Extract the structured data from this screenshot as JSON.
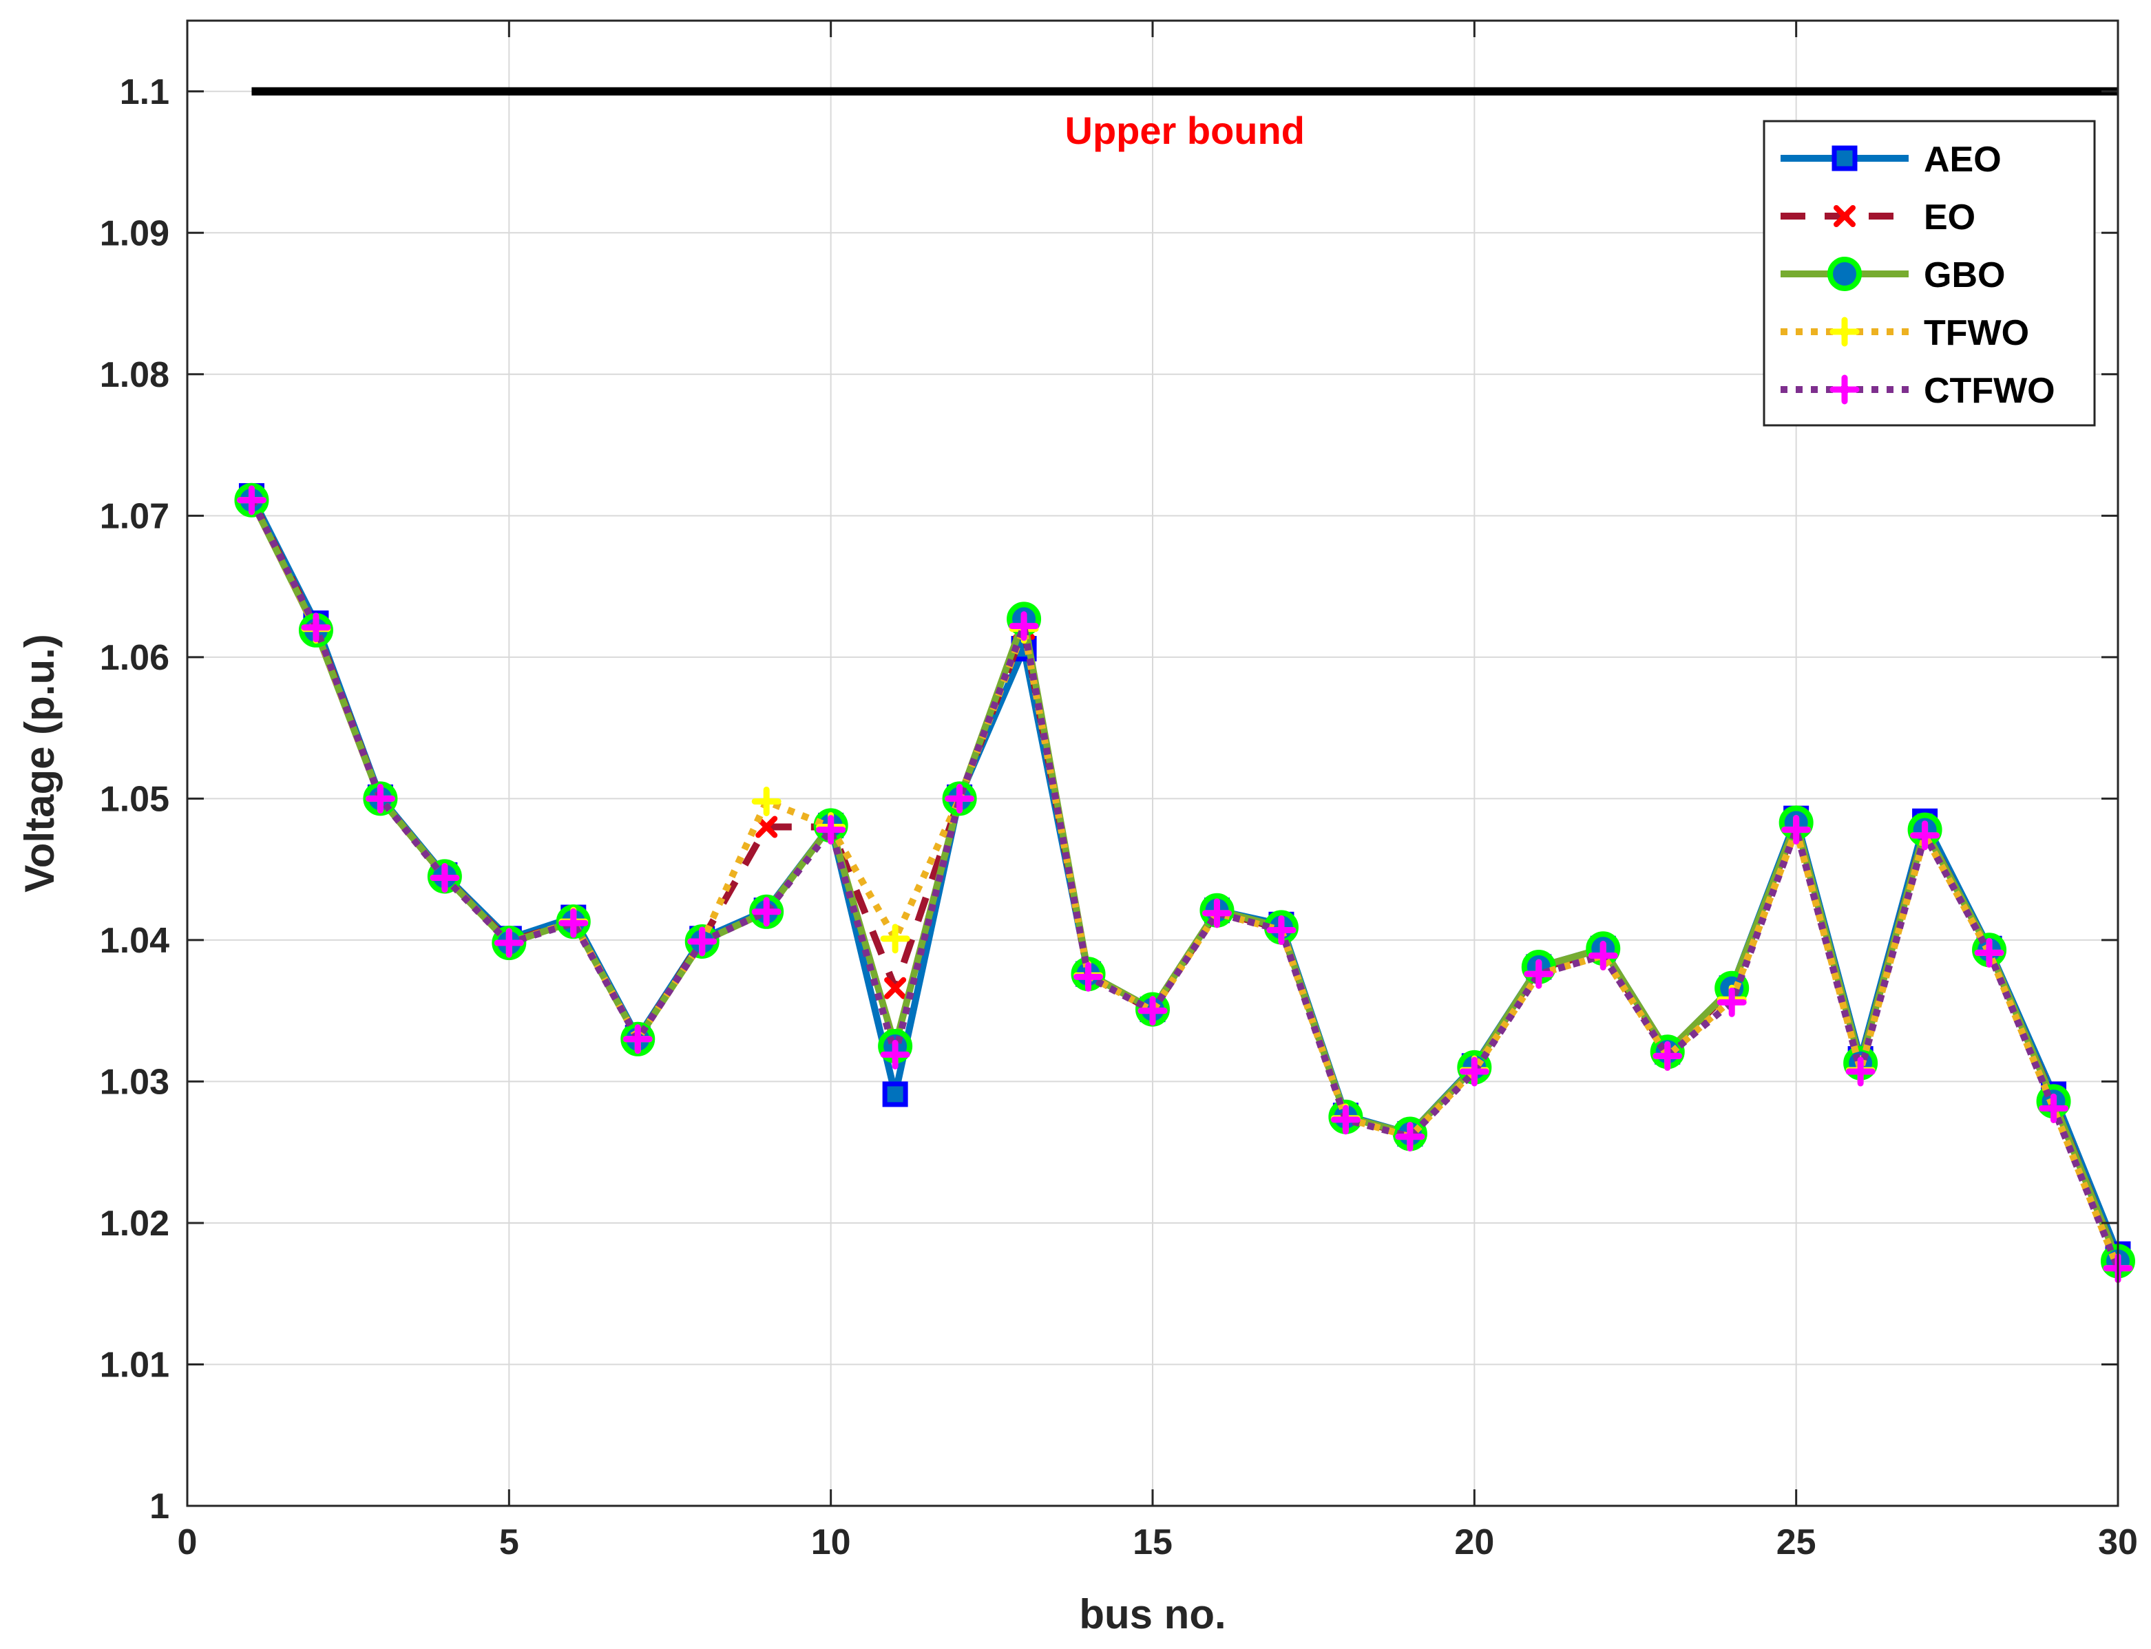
{
  "chart_data": {
    "type": "line",
    "xlabel": "bus no.",
    "ylabel": "Voltage (p.u.)",
    "xlim": [
      0,
      30
    ],
    "ylim": [
      1.0,
      1.105
    ],
    "xticks": [
      0,
      5,
      10,
      15,
      20,
      25,
      30
    ],
    "xtick_labels": [
      "0",
      "5",
      "10",
      "15",
      "20",
      "25",
      "30"
    ],
    "yticks": [
      1.0,
      1.01,
      1.02,
      1.03,
      1.04,
      1.05,
      1.06,
      1.07,
      1.08,
      1.09,
      1.1
    ],
    "ytick_labels": [
      "1",
      "1.01",
      "1.02",
      "1.03",
      "1.04",
      "1.05",
      "1.06",
      "1.07",
      "1.08",
      "1.09",
      "1.1"
    ],
    "grid": true,
    "legend_position": "top-right",
    "x": [
      1,
      2,
      3,
      4,
      5,
      6,
      7,
      8,
      9,
      10,
      11,
      12,
      13,
      14,
      15,
      16,
      17,
      18,
      19,
      20,
      21,
      22,
      23,
      24,
      25,
      26,
      27,
      28,
      29,
      30
    ],
    "series": [
      {
        "name": "AEO",
        "line_color": "#0072BD",
        "line_style": "solid",
        "marker": "square",
        "marker_color": "#0000FF",
        "values": [
          1.0714,
          1.0624,
          1.0501,
          1.0446,
          1.0401,
          1.0416,
          1.0331,
          1.0401,
          1.0421,
          1.0481,
          1.0291,
          1.0501,
          1.0606,
          1.0376,
          1.0351,
          1.0421,
          1.0411,
          1.0276,
          1.0263,
          1.0311,
          1.0381,
          1.0394,
          1.0321,
          1.0366,
          1.0486,
          1.0316,
          1.0484,
          1.0394,
          1.0291,
          1.0178
        ]
      },
      {
        "name": "EO",
        "line_color": "#A2142F",
        "line_style": "dashed",
        "marker": "x",
        "marker_color": "#FF0000",
        "values": [
          1.0712,
          1.0621,
          1.05,
          1.0445,
          1.0399,
          1.0413,
          1.033,
          1.04,
          1.048,
          1.048,
          1.0366,
          1.05,
          1.062,
          1.0375,
          1.035,
          1.042,
          1.0408,
          1.0275,
          1.0262,
          1.031,
          1.038,
          1.0392,
          1.032,
          1.0365,
          1.0482,
          1.0313,
          1.0479,
          1.0392,
          1.0287,
          1.0173
        ]
      },
      {
        "name": "GBO",
        "line_color": "#77AC30",
        "line_style": "solid",
        "marker": "circle",
        "marker_color": "#00FF00",
        "values": [
          1.0711,
          1.0619,
          1.05,
          1.0445,
          1.0398,
          1.0413,
          1.033,
          1.0399,
          1.042,
          1.0481,
          1.0325,
          1.05,
          1.0627,
          1.0376,
          1.0351,
          1.0421,
          1.0409,
          1.0275,
          1.0263,
          1.031,
          1.0381,
          1.0394,
          1.0321,
          1.0366,
          1.0483,
          1.0313,
          1.0478,
          1.0393,
          1.0286,
          1.0173
        ]
      },
      {
        "name": "TFWO",
        "line_color": "#EDB120",
        "line_style": "dotted",
        "marker": "plus",
        "marker_color": "#FFFF00",
        "values": [
          1.0711,
          1.062,
          1.05,
          1.0444,
          1.0398,
          1.0413,
          1.033,
          1.0399,
          1.0498,
          1.048,
          1.0401,
          1.05,
          1.062,
          1.0375,
          1.035,
          1.0419,
          1.0407,
          1.0274,
          1.0261,
          1.0308,
          1.0376,
          1.0389,
          1.0318,
          1.0358,
          1.0478,
          1.0308,
          1.0474,
          1.0391,
          1.0281,
          1.0168
        ]
      },
      {
        "name": "CTFWO",
        "line_color": "#7E2F8E",
        "line_style": "dotted",
        "marker": "plus",
        "marker_color": "#FF00FF",
        "values": [
          1.0711,
          1.0621,
          1.05,
          1.0444,
          1.0398,
          1.0412,
          1.033,
          1.0399,
          1.042,
          1.0478,
          1.0319,
          1.05,
          1.0622,
          1.0374,
          1.035,
          1.0419,
          1.0407,
          1.0273,
          1.0261,
          1.0307,
          1.0376,
          1.0389,
          1.0318,
          1.0356,
          1.0478,
          1.0307,
          1.0474,
          1.0391,
          1.0281,
          1.0168
        ]
      }
    ],
    "upper_bound": {
      "value": 1.1,
      "x_start": 1,
      "x_end": 30,
      "color": "#000000"
    },
    "annotations": [
      {
        "text": "Upper bound",
        "x": 15.5,
        "y": 1.0963,
        "color": "#FF0000"
      }
    ]
  }
}
